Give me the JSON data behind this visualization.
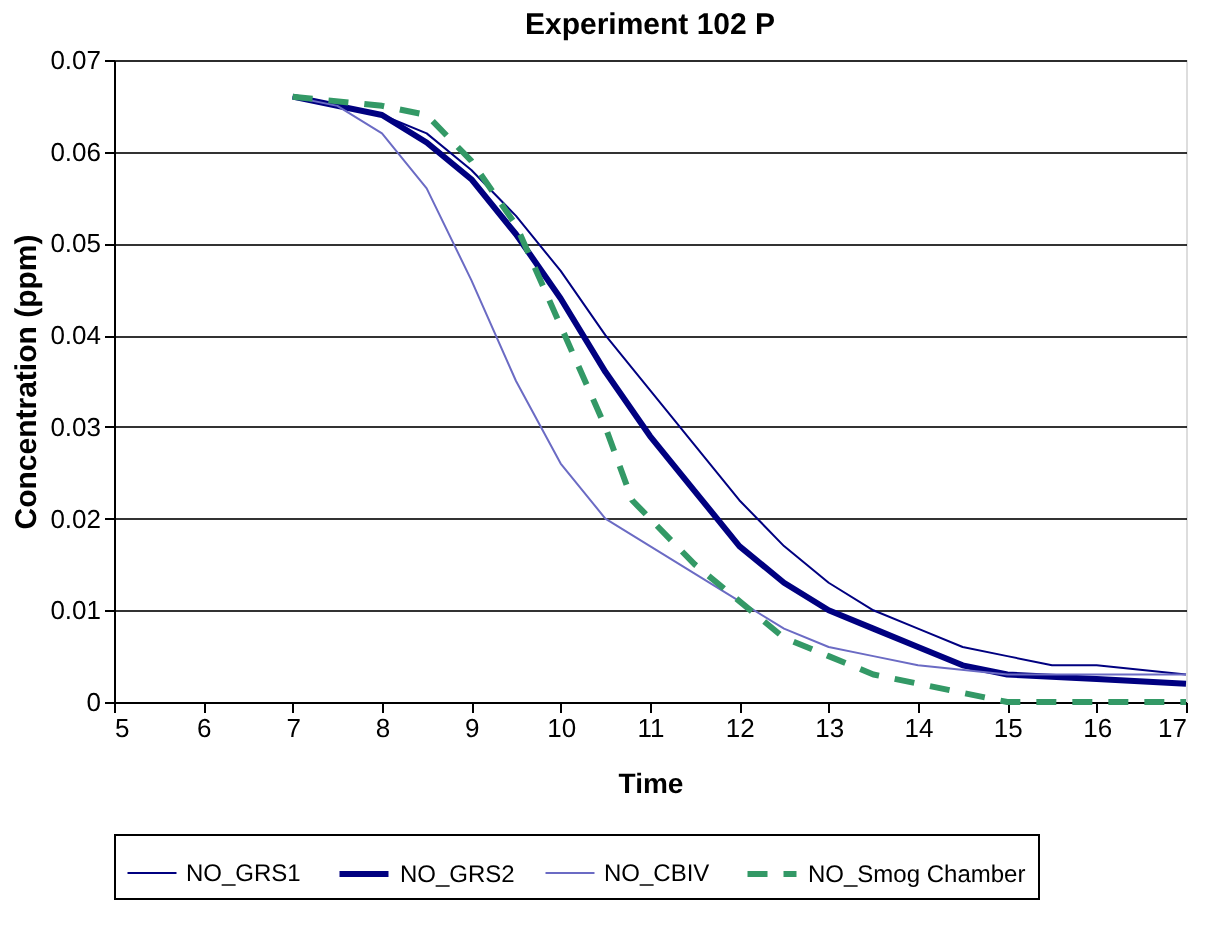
{
  "chart_data": {
    "type": "line",
    "title": "Experiment 102 P",
    "xlabel": "Time",
    "ylabel": "Concentration (ppm)",
    "xlim": [
      5,
      17
    ],
    "xticks": [
      5,
      6,
      7,
      8,
      9,
      10,
      11,
      12,
      13,
      14,
      15,
      16,
      17
    ],
    "ylim": [
      0,
      0.07
    ],
    "yticks": [
      0,
      0.01,
      0.02,
      0.03,
      0.04,
      0.05,
      0.06,
      0.07
    ],
    "grid": "y",
    "legend": "bottom",
    "marker": "none",
    "series": [
      {
        "name": "NO_GRS1",
        "color": "#000080",
        "line_style": "solid",
        "x": [
          7,
          8,
          8.5,
          9,
          9.5,
          10,
          10.5,
          11,
          11.5,
          12,
          12.5,
          13,
          13.5,
          14,
          14.5,
          15,
          15.5,
          16,
          17
        ],
        "values": [
          0.066,
          0.064,
          0.062,
          0.058,
          0.053,
          0.047,
          0.04,
          0.034,
          0.028,
          0.022,
          0.017,
          0.013,
          0.01,
          0.008,
          0.006,
          0.005,
          0.004,
          0.004,
          0.003
        ]
      },
      {
        "name": "NO_GRS2",
        "color": "#000080",
        "line_style": "solid",
        "x": [
          7,
          8,
          8.5,
          9,
          9.5,
          10,
          10.5,
          11,
          11.5,
          12,
          12.5,
          13,
          13.5,
          14,
          14.5,
          15,
          16,
          17
        ],
        "values": [
          0.066,
          0.064,
          0.061,
          0.057,
          0.051,
          0.044,
          0.036,
          0.029,
          0.023,
          0.017,
          0.013,
          0.01,
          0.008,
          0.006,
          0.004,
          0.003,
          0.0025,
          0.002
        ]
      },
      {
        "name": "NO_CBIV",
        "color": "#6b6bc4",
        "line_style": "solid",
        "x": [
          7,
          7.5,
          8,
          8.5,
          9,
          9.5,
          10,
          10.5,
          11,
          11.5,
          12,
          12.5,
          13,
          13.5,
          14,
          15,
          16,
          17
        ],
        "values": [
          0.066,
          0.065,
          0.062,
          0.056,
          0.046,
          0.035,
          0.026,
          0.02,
          0.017,
          0.014,
          0.011,
          0.008,
          0.006,
          0.005,
          0.004,
          0.003,
          0.003,
          0.003
        ]
      },
      {
        "name": "NO_Smog Chamber",
        "color": "#339966",
        "line_style": "dashed",
        "x": [
          7,
          8,
          8.5,
          9,
          9.5,
          10,
          10.5,
          10.8,
          11,
          11.5,
          12,
          12.5,
          13,
          13.5,
          14,
          14.5,
          15,
          16,
          17
        ],
        "values": [
          0.066,
          0.065,
          0.064,
          0.059,
          0.052,
          0.041,
          0.03,
          0.022,
          0.02,
          0.015,
          0.011,
          0.007,
          0.005,
          0.003,
          0.002,
          0.001,
          0,
          0,
          0
        ]
      }
    ]
  }
}
